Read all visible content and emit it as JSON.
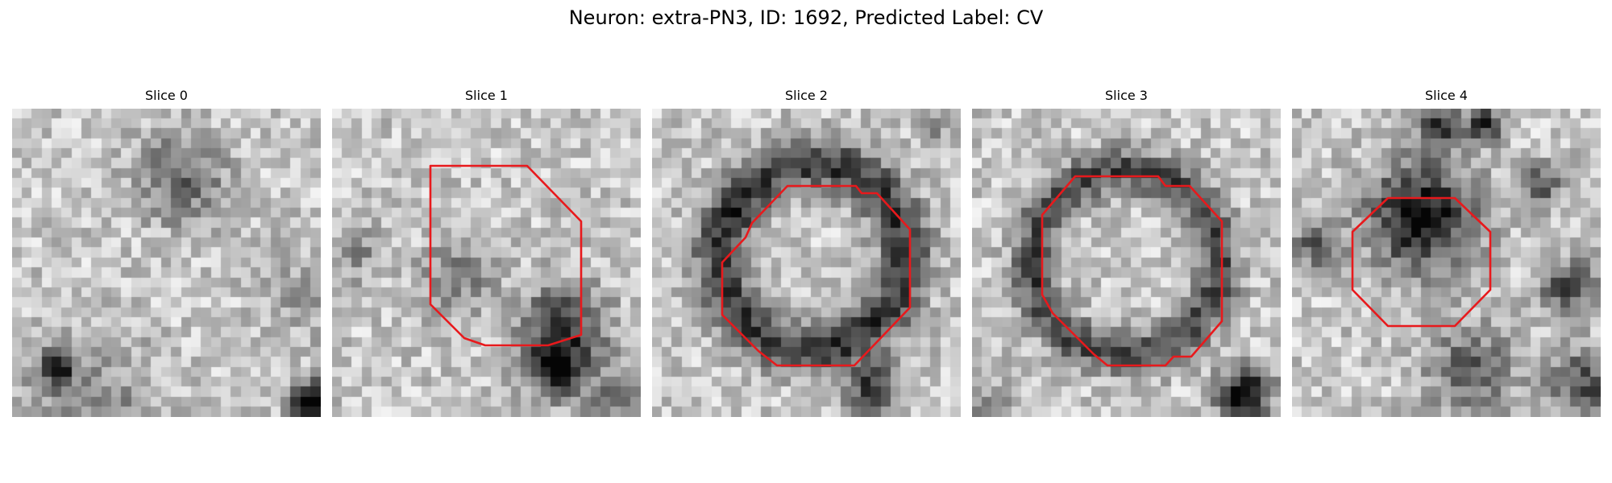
{
  "figure": {
    "title": "Neuron: extra-PN3, ID: 1692, Predicted Label: CV",
    "contour_color": "#e8191c",
    "panels": [
      {
        "title": "Slice 0",
        "has_contour": false
      },
      {
        "title": "Slice 1",
        "has_contour": true
      },
      {
        "title": "Slice 2",
        "has_contour": true
      },
      {
        "title": "Slice 3",
        "has_contour": true
      },
      {
        "title": "Slice 4",
        "has_contour": true
      }
    ]
  }
}
